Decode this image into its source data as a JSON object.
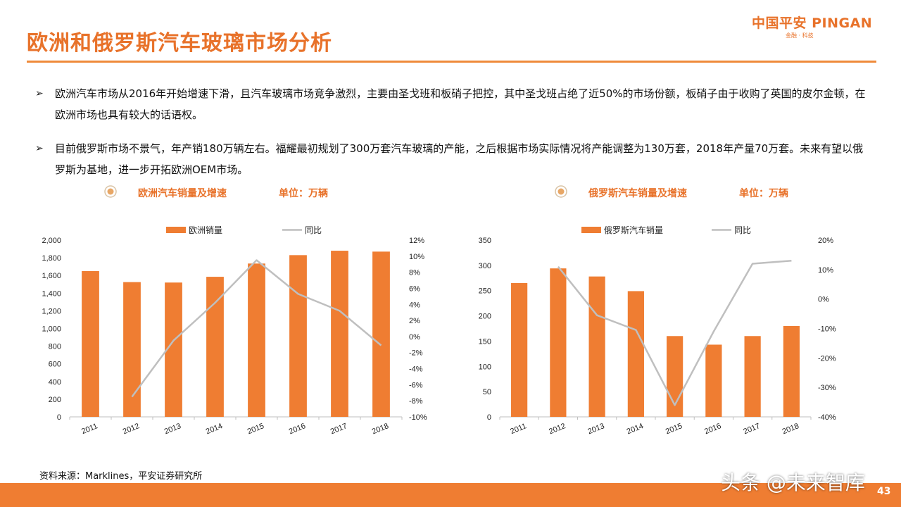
{
  "page": {
    "title": "欧洲和俄罗斯汽车玻璃市场分析",
    "logo": {
      "main": "中国平安 PINGAN",
      "sub": "金融 · 科技"
    },
    "bullets": [
      "欧洲汽车市场从2016年开始增速下滑，且汽车玻璃市场竞争激烈，主要由圣戈班和板硝子把控，其中圣戈班占绝了近50%的市场份额，板硝子由于收购了英国的皮尔金顿，在欧洲市场也具有较大的话语权。",
      "目前俄罗斯市场不景气，年产销180万辆左右。福耀最初规划了300万套汽车玻璃的产能，之后根据市场实际情况将产能调整为130万套，2018年产量70万套。未来有望以俄罗斯为基地，进一步开拓欧洲OEM市场。"
    ],
    "bullet_marker": "➢",
    "source": "资料来源：Marklines，平安证券研究所",
    "watermark": "头条 @未来智库",
    "page_number": "43",
    "colors": {
      "accent": "#e8722a",
      "bar": "#ef7d32",
      "line": "#bfbfbf"
    }
  },
  "captions": [
    {
      "text": "欧洲汽车销量及增速",
      "unit": "单位：万辆"
    },
    {
      "text": "俄罗斯汽车销量及增速",
      "unit": "单位：万辆"
    }
  ],
  "chart_data": [
    {
      "type": "bar",
      "categories": [
        "2011",
        "2012",
        "2013",
        "2014",
        "2015",
        "2016",
        "2017",
        "2018"
      ],
      "series": [
        {
          "name": "欧洲销量",
          "type": "bar",
          "axis": "left",
          "values": [
            1650,
            1525,
            1520,
            1585,
            1735,
            1830,
            1880,
            1870
          ]
        },
        {
          "name": "同比",
          "type": "line",
          "axis": "right",
          "values": [
            null,
            -7.5,
            -0.5,
            4.2,
            9.5,
            5.3,
            3.2,
            -1.1
          ]
        }
      ],
      "y_left": {
        "min": 0,
        "max": 2000,
        "ticks": [
          "0",
          "200",
          "400",
          "600",
          "800",
          "1,000",
          "1,200",
          "1,400",
          "1,600",
          "1,800",
          "2,000"
        ]
      },
      "y_right": {
        "min": -10,
        "max": 12,
        "ticks": [
          "-10%",
          "-8%",
          "-6%",
          "-4%",
          "-2%",
          "0%",
          "2%",
          "4%",
          "6%",
          "8%",
          "10%",
          "12%"
        ]
      },
      "legend": "top"
    },
    {
      "type": "bar",
      "categories": [
        "2011",
        "2012",
        "2013",
        "2014",
        "2015",
        "2016",
        "2017",
        "2018"
      ],
      "series": [
        {
          "name": "俄罗斯汽车销量",
          "type": "bar",
          "axis": "left",
          "values": [
            265,
            294,
            278,
            249,
            160,
            143,
            160,
            180
          ]
        },
        {
          "name": "同比",
          "type": "line",
          "axis": "right",
          "values": [
            null,
            11,
            -5.5,
            -10.5,
            -36,
            -11,
            12,
            13
          ]
        }
      ],
      "y_left": {
        "min": 0,
        "max": 350,
        "ticks": [
          "0",
          "50",
          "100",
          "150",
          "200",
          "250",
          "300",
          "350"
        ]
      },
      "y_right": {
        "min": -40,
        "max": 20,
        "ticks": [
          "-40%",
          "-30%",
          "-20%",
          "-10%",
          "0%",
          "10%",
          "20%"
        ]
      },
      "legend": "top"
    }
  ]
}
